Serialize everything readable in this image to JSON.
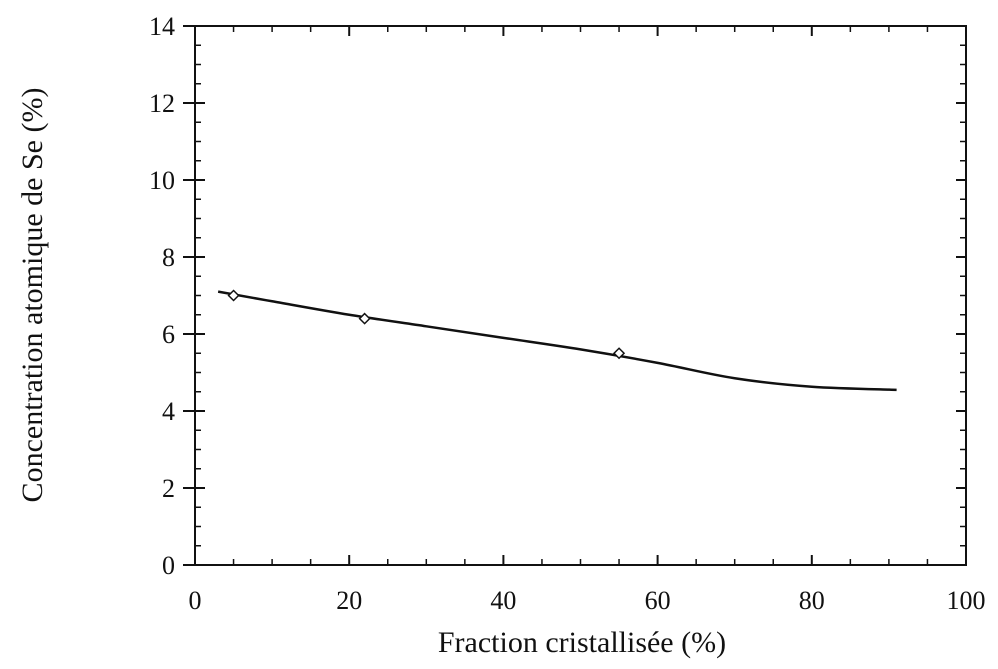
{
  "chart_data": {
    "type": "scatter",
    "title": "",
    "xlabel": "Fraction cristallisée (%)",
    "ylabel": "Concentration atomique de Se (%)",
    "xlim": [
      0,
      100
    ],
    "ylim": [
      0,
      14
    ],
    "x_ticks": [
      "0",
      "20",
      "40",
      "60",
      "80",
      "100"
    ],
    "y_ticks": [
      "0",
      "2",
      "4",
      "6",
      "8",
      "10",
      "12",
      "14"
    ],
    "grid": false,
    "legend": "none",
    "series": [
      {
        "marker": "diamond-open",
        "x": [
          5,
          22,
          55
        ],
        "y": [
          7.0,
          6.4,
          5.5
        ]
      },
      {
        "style": "fit-line",
        "x": [
          3,
          10,
          20,
          30,
          40,
          50,
          60,
          70,
          80,
          91
        ],
        "y": [
          7.1,
          6.85,
          6.5,
          6.2,
          5.9,
          5.6,
          5.25,
          4.85,
          4.63,
          4.55
        ]
      }
    ],
    "colors": {
      "line": "#111111",
      "axes": "#111111"
    }
  }
}
